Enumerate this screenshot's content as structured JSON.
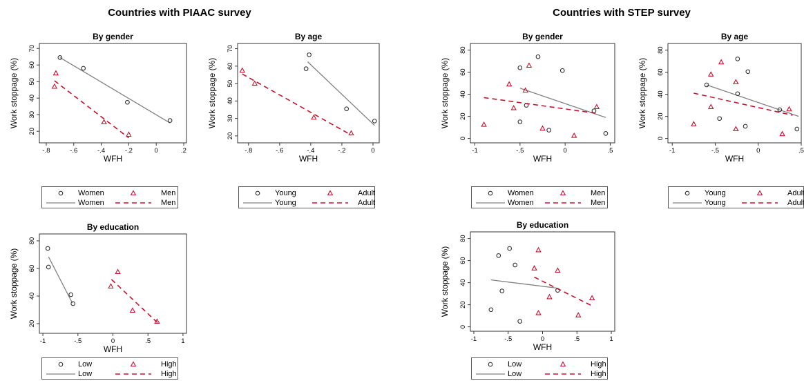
{
  "page": {
    "groups": [
      "Countries with PIAAC survey",
      "Countries with STEP survey"
    ]
  },
  "colors": {
    "series_a": "#808080",
    "series_b": "#c8102e",
    "axis": "#333333"
  },
  "chart_data": [
    {
      "type": "scatter",
      "title": "By gender",
      "xlabel": "WFH",
      "ylabel": "Work stoppage (%)",
      "xlim": [
        -0.85,
        0.22
      ],
      "ylim": [
        13,
        73
      ],
      "xticks": [
        -0.8,
        -0.6,
        -0.4,
        -0.2,
        0,
        0.2
      ],
      "xticklabels": [
        "-.8",
        "-.6",
        "-.4",
        "-.2",
        "0",
        ".2"
      ],
      "yticks": [
        20,
        30,
        40,
        50,
        60,
        70
      ],
      "yticklabels": [
        "20",
        "30",
        "40",
        "50",
        "60",
        "70"
      ],
      "series": [
        {
          "name": "Women",
          "marker": "circle",
          "points": [
            [
              -0.7,
              64.5
            ],
            [
              -0.53,
              58
            ],
            [
              -0.21,
              37.5
            ],
            [
              0.1,
              26.5
            ]
          ],
          "fit": [
            [
              -0.7,
              64.5
            ],
            [
              0.1,
              25
            ]
          ]
        },
        {
          "name": "Men",
          "marker": "triangle",
          "points": [
            [
              -0.73,
              55
            ],
            [
              -0.74,
              47
            ],
            [
              -0.38,
              25.5
            ],
            [
              -0.2,
              18
            ]
          ],
          "fit": [
            [
              -0.74,
              50.5
            ],
            [
              -0.2,
              16
            ]
          ]
        }
      ],
      "legend": [
        [
          "Women",
          "Men"
        ],
        [
          "Women",
          "Men"
        ]
      ]
    },
    {
      "type": "scatter",
      "title": "By age",
      "xlabel": "WFH",
      "ylabel": "Work stoppage (%)",
      "xlim": [
        -0.87,
        0.04
      ],
      "ylim": [
        16,
        73
      ],
      "xticks": [
        -0.8,
        -0.6,
        -0.4,
        -0.2,
        0
      ],
      "xticklabels": [
        "-.8",
        "-.6",
        "-.4",
        "-.2",
        "0"
      ],
      "yticks": [
        20,
        30,
        40,
        50,
        60,
        70
      ],
      "yticklabels": [
        "20",
        "30",
        "40",
        "50",
        "60",
        "70"
      ],
      "series": [
        {
          "name": "Young",
          "marker": "circle",
          "points": [
            [
              -0.43,
              58.5
            ],
            [
              -0.41,
              66.5
            ],
            [
              -0.17,
              35.5
            ],
            [
              0.01,
              28.5
            ]
          ],
          "fit": [
            [
              -0.42,
              62.5
            ],
            [
              0.01,
              26
            ]
          ]
        },
        {
          "name": "Adult",
          "marker": "triangle",
          "points": [
            [
              -0.84,
              57.5
            ],
            [
              -0.76,
              50
            ],
            [
              -0.38,
              30.5
            ],
            [
              -0.14,
              21.5
            ]
          ],
          "fit": [
            [
              -0.84,
              55.5
            ],
            [
              -0.14,
              20.5
            ]
          ]
        }
      ],
      "legend": [
        [
          "Young",
          "Adult"
        ],
        [
          "Young",
          "Adult"
        ]
      ]
    },
    {
      "type": "scatter",
      "title": "By gender",
      "xlabel": "WFH",
      "ylabel": "Work stoppage (%)",
      "xlim": [
        -1.05,
        0.55
      ],
      "ylim": [
        -4,
        86
      ],
      "xticks": [
        -1,
        -0.5,
        0,
        0.5
      ],
      "xticklabels": [
        "-1",
        "-.5",
        "0",
        ".5"
      ],
      "yticks": [
        0,
        20,
        40,
        60,
        80
      ],
      "yticklabels": [
        "0",
        "20",
        "40",
        "60",
        "80"
      ],
      "series": [
        {
          "name": "Women",
          "marker": "circle",
          "points": [
            [
              -0.5,
              64
            ],
            [
              -0.3,
              74
            ],
            [
              -0.03,
              61.5
            ],
            [
              -0.5,
              15
            ],
            [
              -0.43,
              30
            ],
            [
              -0.18,
              7.5
            ],
            [
              0.32,
              25
            ],
            [
              0.45,
              4.5
            ]
          ],
          "fit": [
            [
              -0.5,
              45.5
            ],
            [
              0.45,
              19
            ]
          ]
        },
        {
          "name": "Men",
          "marker": "triangle",
          "points": [
            [
              -0.9,
              12.5
            ],
            [
              -0.62,
              49
            ],
            [
              -0.57,
              27.5
            ],
            [
              -0.44,
              43.5
            ],
            [
              -0.4,
              66
            ],
            [
              -0.25,
              9
            ],
            [
              0.1,
              2.5
            ],
            [
              0.35,
              28.5
            ]
          ],
          "fit": [
            [
              -0.9,
              37
            ],
            [
              0.37,
              22.5
            ]
          ]
        }
      ],
      "legend": [
        [
          "Women",
          "Men"
        ],
        [
          "Women",
          "Men"
        ]
      ]
    },
    {
      "type": "scatter",
      "title": "By age",
      "xlabel": "WFH",
      "ylabel": "Work stoppage (%)",
      "xlim": [
        -1.05,
        0.5
      ],
      "ylim": [
        -4,
        86
      ],
      "xticks": [
        -1,
        -0.5,
        0,
        0.5
      ],
      "xticklabels": [
        "-1",
        "-.5",
        "0",
        ".5"
      ],
      "yticks": [
        0,
        20,
        40,
        60,
        80
      ],
      "yticklabels": [
        "0",
        "20",
        "40",
        "60",
        "80"
      ],
      "series": [
        {
          "name": "Young",
          "marker": "circle",
          "points": [
            [
              -0.6,
              48.5
            ],
            [
              -0.24,
              72
            ],
            [
              -0.12,
              60.5
            ],
            [
              -0.24,
              40.5
            ],
            [
              -0.45,
              18
            ],
            [
              -0.15,
              11
            ],
            [
              0.25,
              26
            ],
            [
              0.45,
              8.5
            ]
          ],
          "fit": [
            [
              -0.6,
              48.5
            ],
            [
              0.47,
              20
            ]
          ]
        },
        {
          "name": "Adult",
          "marker": "triangle",
          "points": [
            [
              -0.75,
              13
            ],
            [
              -0.55,
              58
            ],
            [
              -0.43,
              69
            ],
            [
              -0.55,
              28.5
            ],
            [
              -0.26,
              51
            ],
            [
              -0.26,
              8.5
            ],
            [
              0.28,
              4
            ],
            [
              0.36,
              26.5
            ]
          ],
          "fit": [
            [
              -0.75,
              41
            ],
            [
              0.4,
              21
            ]
          ]
        }
      ],
      "legend": [
        [
          "Young",
          "Adult"
        ],
        [
          "Young",
          "Adult"
        ]
      ]
    },
    {
      "type": "scatter",
      "title": "By education",
      "xlabel": "WFH",
      "ylabel": "Work stoppage (%)",
      "xlim": [
        -1.05,
        1.05
      ],
      "ylim": [
        13,
        85
      ],
      "xticks": [
        -1,
        -0.5,
        0,
        0.5,
        1
      ],
      "xticklabels": [
        "-1",
        "-.5",
        "0",
        ".5",
        "1"
      ],
      "yticks": [
        20,
        40,
        60,
        80
      ],
      "yticklabels": [
        "20",
        "40",
        "60",
        "80"
      ],
      "series": [
        {
          "name": "Low",
          "marker": "circle",
          "points": [
            [
              -0.93,
              74.5
            ],
            [
              -0.92,
              61
            ],
            [
              -0.6,
              41
            ],
            [
              -0.57,
              34.5
            ]
          ],
          "fit": [
            [
              -0.92,
              68.5
            ],
            [
              -0.58,
              35
            ]
          ]
        },
        {
          "name": "High",
          "marker": "triangle",
          "points": [
            [
              -0.03,
              47
            ],
            [
              0.07,
              57.5
            ],
            [
              0.28,
              29.5
            ],
            [
              0.63,
              21.5
            ]
          ],
          "fit": [
            [
              -0.02,
              52
            ],
            [
              0.64,
              20.5
            ]
          ]
        }
      ],
      "legend": [
        [
          "Low",
          "High"
        ],
        [
          "Low",
          "High"
        ]
      ]
    },
    {
      "type": "scatter",
      "title": "By education",
      "xlabel": "WFH",
      "ylabel": "Work stoppage (%)",
      "xlim": [
        -1.05,
        1.05
      ],
      "ylim": [
        -4,
        86
      ],
      "xticks": [
        -1,
        -0.5,
        0,
        0.5,
        1
      ],
      "xticklabels": [
        "-1",
        "-.5",
        "0",
        ".5",
        "1"
      ],
      "yticks": [
        0,
        20,
        40,
        60,
        80
      ],
      "yticklabels": [
        "0",
        "20",
        "40",
        "60",
        "80"
      ],
      "series": [
        {
          "name": "Low",
          "marker": "circle",
          "points": [
            [
              -0.75,
              15.5
            ],
            [
              -0.64,
              64.5
            ],
            [
              -0.59,
              32.5
            ],
            [
              -0.48,
              71
            ],
            [
              -0.4,
              56
            ],
            [
              -0.33,
              5
            ],
            [
              0.22,
              33
            ]
          ],
          "fit": [
            [
              -0.75,
              42.5
            ],
            [
              0.22,
              35
            ]
          ]
        },
        {
          "name": "High",
          "marker": "triangle",
          "points": [
            [
              -0.12,
              53
            ],
            [
              -0.06,
              69.5
            ],
            [
              -0.06,
              12.5
            ],
            [
              0.1,
              27
            ],
            [
              0.22,
              51
            ],
            [
              0.52,
              10.5
            ],
            [
              0.72,
              26
            ]
          ],
          "fit": [
            [
              -0.12,
              45
            ],
            [
              0.72,
              19
            ]
          ]
        }
      ],
      "legend": [
        [
          "Low",
          "High"
        ],
        [
          "Low",
          "High"
        ]
      ]
    }
  ]
}
